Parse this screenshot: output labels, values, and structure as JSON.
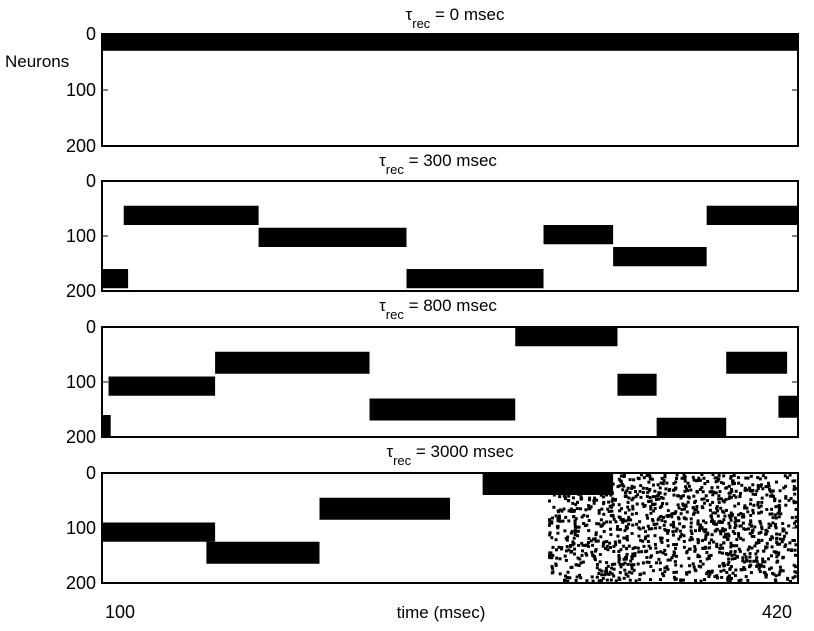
{
  "chart_data": {
    "type": "scatter",
    "xlabel": "time (msec)",
    "ylabel": "Neurons",
    "x_tick_labels": [
      "100",
      "420"
    ],
    "xlim": [
      100,
      420
    ],
    "ylim": [
      0,
      200
    ],
    "y_tick_labels": [
      "0",
      "100",
      "200"
    ],
    "y_reversed": true,
    "marker_color": "#000000",
    "panels": [
      {
        "title": {
          "prefix": "τ",
          "subscript": "rec",
          "suffix": " = 0 msec"
        },
        "blocks": [
          {
            "t0": 100,
            "t1": 420,
            "n0": 0,
            "n1": 30
          }
        ]
      },
      {
        "title": {
          "prefix": "τ",
          "subscript": "rec",
          "suffix": " = 300 msec"
        },
        "blocks": [
          {
            "t0": 100,
            "t1": 112,
            "n0": 160,
            "n1": 195
          },
          {
            "t0": 110,
            "t1": 172,
            "n0": 45,
            "n1": 80
          },
          {
            "t0": 172,
            "t1": 240,
            "n0": 85,
            "n1": 120
          },
          {
            "t0": 240,
            "t1": 303,
            "n0": 160,
            "n1": 195
          },
          {
            "t0": 303,
            "t1": 335,
            "n0": 80,
            "n1": 115
          },
          {
            "t0": 335,
            "t1": 378,
            "n0": 120,
            "n1": 155
          },
          {
            "t0": 378,
            "t1": 420,
            "n0": 45,
            "n1": 80
          }
        ]
      },
      {
        "title": {
          "prefix": "τ",
          "subscript": "rec",
          "suffix": " = 800 msec"
        },
        "blocks": [
          {
            "t0": 100,
            "t1": 104,
            "n0": 160,
            "n1": 200
          },
          {
            "t0": 103,
            "t1": 152,
            "n0": 90,
            "n1": 125
          },
          {
            "t0": 152,
            "t1": 223,
            "n0": 45,
            "n1": 85
          },
          {
            "t0": 223,
            "t1": 290,
            "n0": 130,
            "n1": 170
          },
          {
            "t0": 290,
            "t1": 337,
            "n0": 0,
            "n1": 35
          },
          {
            "t0": 337,
            "t1": 355,
            "n0": 85,
            "n1": 125
          },
          {
            "t0": 355,
            "t1": 387,
            "n0": 165,
            "n1": 200
          },
          {
            "t0": 387,
            "t1": 415,
            "n0": 45,
            "n1": 85
          },
          {
            "t0": 411,
            "t1": 420,
            "n0": 125,
            "n1": 165
          }
        ]
      },
      {
        "title": {
          "prefix": "τ",
          "subscript": "rec",
          "suffix": " = 3000 msec"
        },
        "blocks": [
          {
            "t0": 100,
            "t1": 152,
            "n0": 90,
            "n1": 125
          },
          {
            "t0": 148,
            "t1": 200,
            "n0": 125,
            "n1": 165
          },
          {
            "t0": 200,
            "t1": 260,
            "n0": 45,
            "n1": 85
          },
          {
            "t0": 275,
            "t1": 335,
            "n0": 0,
            "n1": 40
          },
          {
            "t0": 305,
            "t1": 420,
            "n0": 0,
            "n1": 200,
            "scatter": true
          }
        ]
      }
    ]
  }
}
